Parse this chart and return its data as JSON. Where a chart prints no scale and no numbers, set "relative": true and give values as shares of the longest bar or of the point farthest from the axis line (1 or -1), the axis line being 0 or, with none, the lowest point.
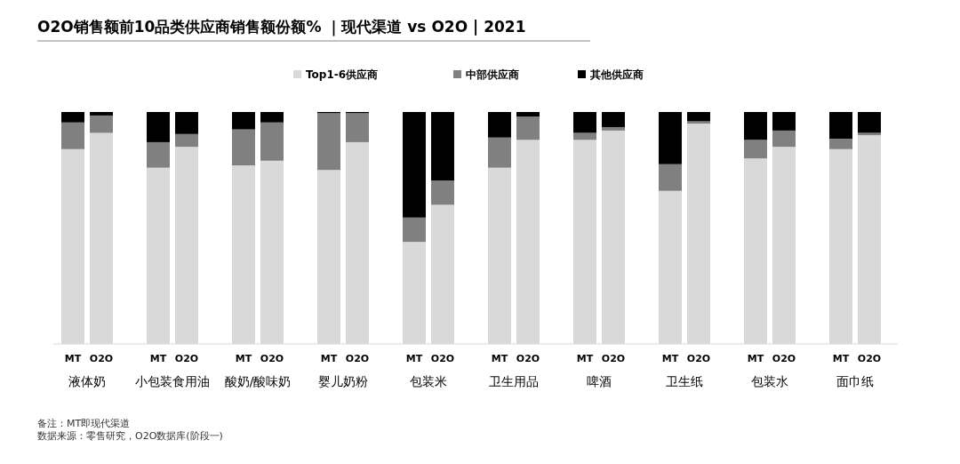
{
  "chart_data": {
    "type": "bar",
    "title": "O2O销售额前10品类供应商销售额份额% ｜现代渠道 vs O2O | 2021",
    "relative": true,
    "stacked": true,
    "legend": "top",
    "categories": [
      "MT",
      "O2O",
      "MT",
      "O2O",
      "MT",
      "O2O",
      "MT",
      "O2O",
      "MT",
      "O2O",
      "MT",
      "O2O",
      "MT",
      "O2O",
      "MT",
      "O2O",
      "MT",
      "O2O",
      "MT",
      "O2O"
    ],
    "series": [
      {
        "name": "Top1-6供应商",
        "color": "#d9d9d9",
        "values": [
          0.84,
          0.91,
          0.76,
          0.85,
          0.77,
          0.79,
          0.75,
          0.87,
          0.44,
          0.6,
          0.76,
          0.88,
          0.88,
          0.92,
          0.66,
          0.95,
          0.8,
          0.85,
          0.84,
          0.9
        ]
      },
      {
        "name": "中部供应商",
        "color": "#808080",
        "values": [
          0.115,
          0.075,
          0.11,
          0.055,
          0.155,
          0.165,
          0.245,
          0.125,
          0.105,
          0.105,
          0.13,
          0.1,
          0.03,
          0.015,
          0.115,
          0.01,
          0.08,
          0.07,
          0.045,
          0.01
        ]
      },
      {
        "name": "其他供应商",
        "color": "#000000",
        "values": [
          0.045,
          0.015,
          0.13,
          0.095,
          0.075,
          0.045,
          0.005,
          0.005,
          0.455,
          0.295,
          0.11,
          0.02,
          0.09,
          0.065,
          0.225,
          0.04,
          0.12,
          0.08,
          0.115,
          0.09
        ]
      }
    ],
    "annotations": [
      "液体奶",
      "小包装食用油",
      "酸奶/酸味奶",
      "婴儿奶粉",
      "包装米",
      "卫生用品",
      "啤酒",
      "卫生纸",
      "包装水",
      "面巾纸",
      "备注：MT即现代渠道",
      "数据来源：零售研究，O2O数据库(阶段一)"
    ]
  }
}
